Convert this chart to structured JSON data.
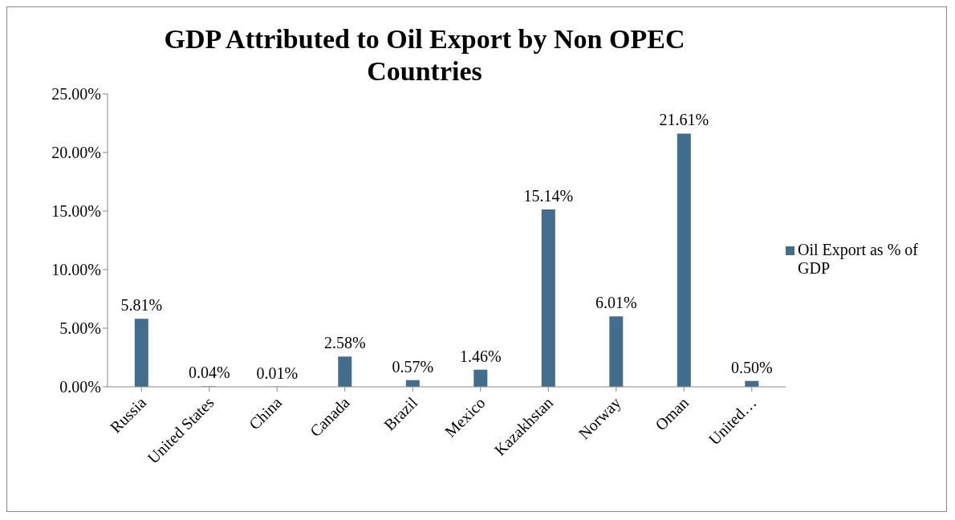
{
  "chart_data": {
    "type": "bar",
    "title": "GDP Attributed to Oil Export by Non OPEC Countries",
    "categories": [
      "Russia",
      "United States",
      "China",
      "Canada",
      "Brazil",
      "Mexico",
      "Kazakhstan",
      "Norway",
      "Oman",
      "United…"
    ],
    "series": [
      {
        "name": "Oil Export as % of GDP",
        "color": "#426d8c",
        "values": [
          5.81,
          0.04,
          0.01,
          2.58,
          0.57,
          1.46,
          15.14,
          6.01,
          21.61,
          0.5
        ],
        "value_labels": [
          "5.81%",
          "0.04%",
          "0.01%",
          "2.58%",
          "0.57%",
          "1.46%",
          "15.14%",
          "6.01%",
          "21.61%",
          "0.50%"
        ]
      }
    ],
    "ylim": [
      0,
      25
    ],
    "yticks": [
      {
        "value": 0,
        "label": "0.00%"
      },
      {
        "value": 5,
        "label": "5.00%"
      },
      {
        "value": 10,
        "label": "10.00%"
      },
      {
        "value": 15,
        "label": "15.00%"
      },
      {
        "value": 20,
        "label": "20.00%"
      },
      {
        "value": 25,
        "label": "25.00%"
      }
    ],
    "grid": false,
    "legend": "right"
  }
}
